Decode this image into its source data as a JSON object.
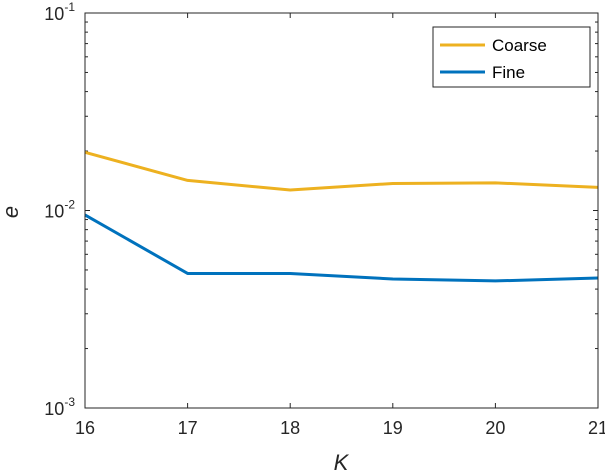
{
  "chart_data": {
    "type": "line",
    "title": "",
    "xlabel": "K",
    "ylabel": "e",
    "x": [
      16,
      17,
      18,
      19,
      20,
      21
    ],
    "xlim": [
      16,
      21
    ],
    "ylim": [
      0.001,
      0.1
    ],
    "yscale": "log",
    "xticks": [
      "16",
      "17",
      "18",
      "19",
      "20",
      "21"
    ],
    "yticks": [
      {
        "base": "10",
        "exp": "-3"
      },
      {
        "base": "10",
        "exp": "-2"
      },
      {
        "base": "10",
        "exp": "-1"
      }
    ],
    "grid": false,
    "legend_position": "top-right",
    "series": [
      {
        "name": "Coarse",
        "color": "#EDB120",
        "values": [
          0.0197,
          0.0142,
          0.0127,
          0.0137,
          0.0138,
          0.0131
        ]
      },
      {
        "name": "Fine",
        "color": "#0072BD",
        "values": [
          0.0095,
          0.0048,
          0.0048,
          0.0045,
          0.0044,
          0.00455
        ]
      }
    ]
  }
}
